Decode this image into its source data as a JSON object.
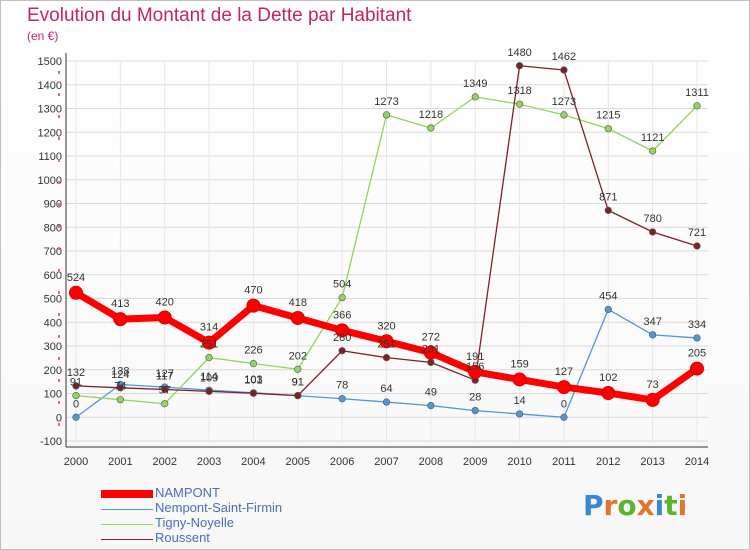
{
  "chart_data": {
    "type": "line",
    "title": "Evolution du Montant de la Dette par Habitant",
    "ylabel": "(en €)",
    "xlabel": "",
    "ylim": [
      -100,
      1500
    ],
    "yticks": [
      -100,
      0,
      100,
      200,
      300,
      400,
      500,
      600,
      700,
      800,
      900,
      1000,
      1100,
      1200,
      1300,
      1400,
      1500
    ],
    "grid": true,
    "legend": "bottom-left",
    "categories": [
      "2000",
      "2001",
      "2002",
      "2003",
      "2004",
      "2005",
      "2006",
      "2007",
      "2008",
      "2009",
      "2010",
      "2011",
      "2012",
      "2013",
      "2014"
    ],
    "series": [
      {
        "name": "NAMPONT",
        "color": "#ff0000",
        "values": [
          524,
          413,
          420,
          314,
          470,
          418,
          366,
          320,
          272,
          191,
          159,
          127,
          102,
          73,
          205
        ]
      },
      {
        "name": "Nempont-Saint-Firmin",
        "color": "#4f97dc",
        "values": [
          0,
          138,
          127,
          114,
          103,
          91,
          78,
          64,
          49,
          28,
          14,
          0,
          454,
          347,
          334
        ]
      },
      {
        "name": "Tigny-Noyelle",
        "color": "#8fd65a",
        "values": [
          91,
          74,
          57,
          251,
          226,
          202,
          504,
          1273,
          1218,
          1349,
          1318,
          1273,
          1215,
          1121,
          1311
        ]
      },
      {
        "name": "Roussent",
        "color": "#7a2326",
        "values": [
          132,
          124,
          117,
          109,
          101,
          91,
          280,
          251,
          231,
          156,
          1480,
          1462,
          871,
          780,
          721
        ]
      }
    ]
  },
  "legend": {
    "items": [
      {
        "label": "NAMPONT"
      },
      {
        "label": "Nempont-Saint-Firmin"
      },
      {
        "label": "Tigny-Noyelle"
      },
      {
        "label": "Roussent"
      }
    ]
  },
  "logo": {
    "text": "Proxiti"
  }
}
